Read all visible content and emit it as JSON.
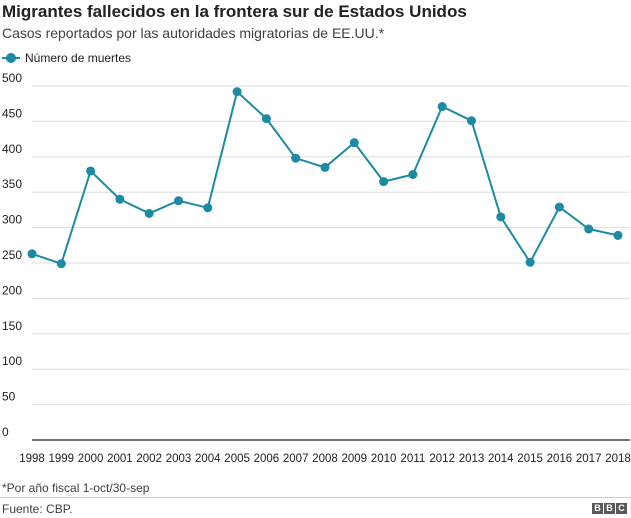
{
  "header": {
    "title": "Migrantes fallecidos en la frontera sur de Estados Unidos",
    "subtitle": "Casos reportados por las autoridades migratorias de EE.UU.*"
  },
  "legend": {
    "label": "Número de muertes"
  },
  "colors": {
    "series": "#1d8aa3",
    "grid": "#dddddd",
    "axis": "#222222"
  },
  "footer": {
    "note": "*Por año fiscal 1-oct/30-sep",
    "source": "Fuente: CBP.",
    "logo": [
      "B",
      "B",
      "C"
    ]
  },
  "chart_data": {
    "type": "line",
    "x": [
      "1998",
      "1999",
      "2000",
      "2001",
      "2002",
      "2003",
      "2004",
      "2005",
      "2006",
      "2007",
      "2008",
      "2009",
      "2010",
      "2011",
      "2012",
      "2013",
      "2014",
      "2015",
      "2016",
      "2017",
      "2018"
    ],
    "series": [
      {
        "name": "Número de muertes",
        "values": [
          263,
          249,
          380,
          340,
          320,
          338,
          328,
          492,
          454,
          398,
          385,
          420,
          365,
          375,
          471,
          451,
          315,
          251,
          329,
          298,
          289
        ]
      }
    ],
    "ylim": [
      0,
      500
    ],
    "yticks": [
      0,
      50,
      100,
      150,
      200,
      250,
      300,
      350,
      400,
      450,
      500
    ],
    "grid": true,
    "legend_position": "top-left"
  }
}
